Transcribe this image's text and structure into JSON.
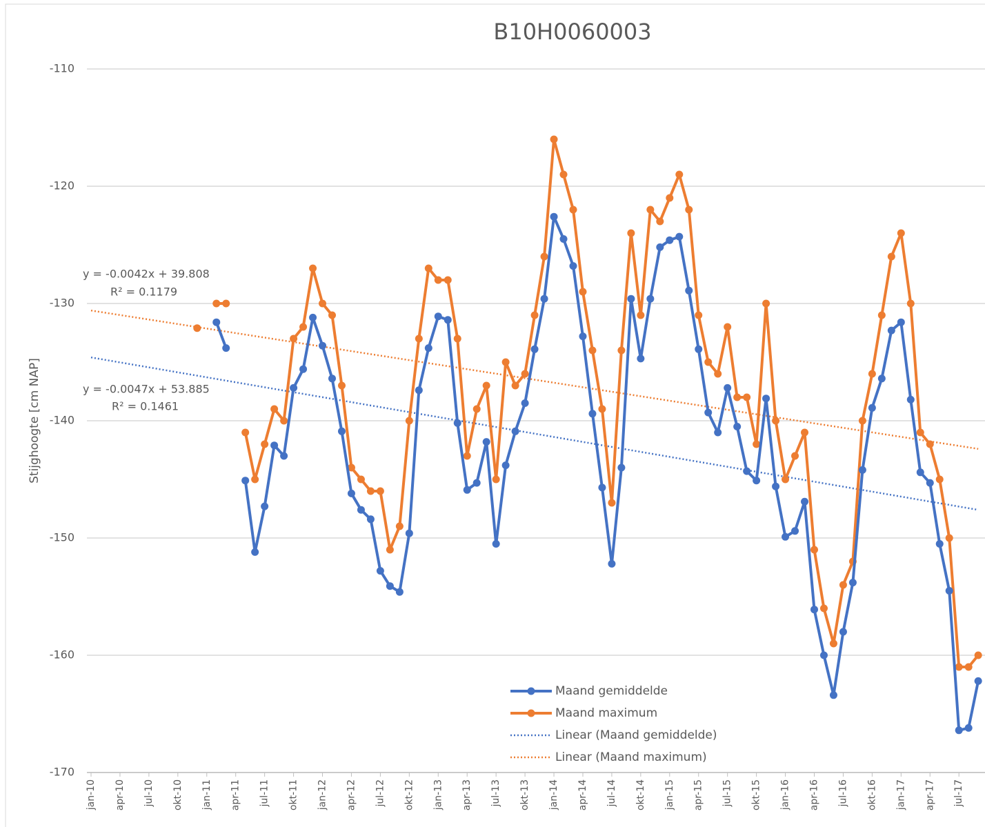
{
  "chart_data": {
    "type": "line",
    "title": "B10H0060003",
    "y_label": "Stijghoogte [cm NAP]",
    "categories": [
      "jan-10",
      null,
      null,
      "apr-10",
      null,
      null,
      "jul-10",
      null,
      null,
      "okt-10",
      null,
      null,
      "jan-11",
      null,
      null,
      "apr-11",
      null,
      null,
      "jul-11",
      null,
      null,
      "okt-11",
      null,
      null,
      "jan-12",
      null,
      null,
      "apr-12",
      null,
      null,
      "jul-12",
      null,
      null,
      "okt-12",
      null,
      null,
      "jan-13",
      null,
      null,
      "apr-13",
      null,
      null,
      "jul-13",
      null,
      null,
      "okt-13",
      null,
      null,
      "jan-14",
      null,
      null,
      "apr-14",
      null,
      null,
      "jul-14",
      null,
      null,
      "okt-14",
      null,
      null,
      "jan-15",
      null,
      null,
      "apr-15",
      null,
      null,
      "jul-15",
      null,
      null,
      "okt-15",
      null,
      null,
      "jan-16",
      null,
      null,
      "apr-16",
      null,
      null,
      "jul-16",
      null,
      null,
      "okt-16",
      null,
      null,
      "jan-17",
      null,
      null,
      "apr-17",
      null,
      null,
      "jul-17",
      null,
      null
    ],
    "series": [
      {
        "name": "Maand gemiddelde",
        "color": "#4472c4",
        "values": [
          null,
          null,
          null,
          null,
          null,
          null,
          null,
          null,
          null,
          null,
          null,
          null,
          null,
          -131.6,
          -133.8,
          null,
          -145.1,
          -151.2,
          -147.3,
          -142.1,
          -143.0,
          -137.2,
          -135.6,
          -131.2,
          -133.6,
          -136.4,
          -140.9,
          -146.2,
          -147.6,
          -148.4,
          -152.8,
          -154.1,
          -154.6,
          -149.6,
          -137.4,
          -133.8,
          -131.1,
          -131.4,
          -140.2,
          -145.9,
          -145.3,
          -141.8,
          -150.5,
          -143.8,
          -140.9,
          -138.5,
          -133.9,
          -129.6,
          -122.6,
          -124.5,
          -126.8,
          -132.8,
          -139.4,
          -145.7,
          -152.2,
          -144.0,
          -129.6,
          -134.7,
          -129.6,
          -125.2,
          -124.6,
          -124.3,
          -128.9,
          -133.9,
          -139.3,
          -141.0,
          -137.2,
          -140.5,
          -144.3,
          -145.1,
          -138.1,
          -145.6,
          -149.9,
          -149.4,
          -146.9,
          -156.1,
          -160.0,
          -163.4,
          -158.0,
          -153.8,
          -144.2,
          -138.9,
          -136.4,
          -132.3,
          -131.6,
          -138.2,
          -144.4,
          -145.3,
          -150.5,
          -154.5,
          -166.4,
          -166.2,
          -162.2
        ]
      },
      {
        "name": "Maand maximum",
        "color": "#ed7d31",
        "values": [
          null,
          null,
          null,
          null,
          null,
          null,
          null,
          null,
          null,
          null,
          null,
          -132.1,
          null,
          -130,
          -130,
          null,
          -141,
          -145,
          -142,
          -139,
          -140,
          -133,
          -132,
          -127,
          -130,
          -131,
          -137,
          -144,
          -145,
          -146,
          -146,
          -151,
          -149,
          -140,
          -133,
          -127,
          -128,
          -128,
          -133,
          -143,
          -139,
          -137,
          -145,
          -135,
          -137,
          -136,
          -131,
          -126,
          -116,
          -119,
          -122,
          -129,
          -134,
          -139,
          -147,
          -134,
          -124,
          -131,
          -122,
          -123,
          -121,
          -119,
          -122,
          -131,
          -135,
          -136,
          -132,
          -138,
          -138,
          -142,
          -130,
          -140,
          -145,
          -143,
          -141,
          -151,
          -156,
          -159,
          -154,
          -152,
          -140,
          -136,
          -131,
          -126,
          -124,
          -130,
          -141,
          -142,
          -145,
          -150,
          -161,
          -161,
          -160
        ]
      }
    ],
    "trendlines": [
      {
        "name": "Linear (Maand gemiddelde)",
        "color": "#4472c4",
        "equation": "y = -0.0047x + 53.885",
        "r2": "R² = 0.1461",
        "values": [
          -134.6,
          -147.6
        ]
      },
      {
        "name": "Linear (Maand maximum)",
        "color": "#ed7d31",
        "equation": "y = -0.0042x + 39.808",
        "r2": "R² = 0.1179",
        "values": [
          -130.6,
          -142.4
        ]
      }
    ],
    "ylim": [
      -170,
      -110
    ],
    "yticks": [
      -170,
      -160,
      -150,
      -140,
      -130,
      -120,
      -110
    ],
    "grid": true
  }
}
